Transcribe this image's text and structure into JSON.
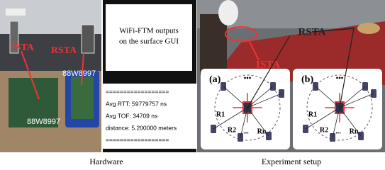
{
  "figure": {
    "hardware_photo": {
      "labels": [
        "ISTA",
        "RSTA",
        "88W8997",
        "88W8997"
      ]
    },
    "gui": {
      "title_lines": [
        "WiFi-FTM outputs",
        "on the surface GUI"
      ],
      "lines": [
        "==================",
        "Avg RTT: 59779757 ns",
        "Avg TOF: 34709 ns",
        "distance: 5.200000 meters",
        "=================="
      ]
    },
    "setup_photo": {
      "labels": [
        "RSTA",
        "ISTA"
      ],
      "diagrams": [
        {
          "tag": "(a)",
          "labels": [
            "R1",
            "R2",
            "Rn",
            "•••",
            "..."
          ]
        },
        {
          "tag": "(b)",
          "labels": [
            "R1",
            "R2",
            "Rn",
            "•••",
            "..."
          ]
        }
      ]
    },
    "captions": [
      "Hardware",
      "Experiment setup"
    ]
  }
}
